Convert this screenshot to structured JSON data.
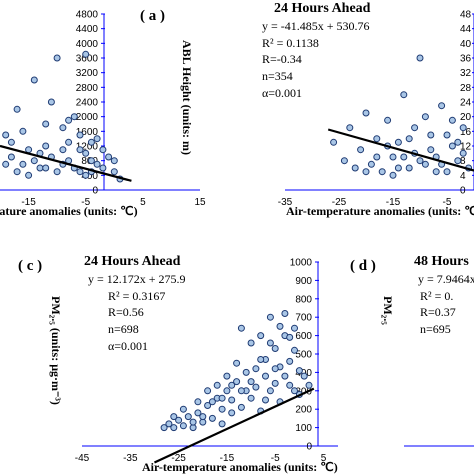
{
  "colors": {
    "axis": "#0000ff",
    "marker_fill": "#a9c6e6",
    "marker_stroke": "#1f3b73",
    "trend": "#000000"
  },
  "chart_data": [
    {
      "type": "scatter",
      "panel": "( a )",
      "xlabel": "rature anomalies (units: ℃)",
      "ylabel": "ABL Height (units: m)",
      "x_ticks": [
        "-15",
        "-5",
        "5",
        "15"
      ],
      "y_ticks": [
        "4800",
        "4400",
        "4000",
        "3600",
        "3200",
        "2800",
        "2400",
        "2000",
        "1600",
        "1200",
        "800",
        "400",
        "0"
      ],
      "xlim": [
        -20,
        15
      ],
      "ylim": [
        0,
        4800
      ],
      "trend": {
        "x0": -20,
        "y0": 1200,
        "x1": 3,
        "y1": 250
      },
      "points": [
        [
          -19,
          1500
        ],
        [
          -18,
          900
        ],
        [
          -17,
          2200
        ],
        [
          -16,
          700
        ],
        [
          -15,
          1100
        ],
        [
          -14,
          3000
        ],
        [
          -13,
          600
        ],
        [
          -12,
          1800
        ],
        [
          -11,
          900
        ],
        [
          -10,
          3600
        ],
        [
          -9,
          700
        ],
        [
          -8,
          1300
        ],
        [
          -7,
          2000
        ],
        [
          -6,
          500
        ],
        [
          -5,
          1000
        ],
        [
          -5,
          3700
        ],
        [
          -4,
          800
        ],
        [
          -3,
          1400
        ],
        [
          -2,
          600
        ],
        [
          -1,
          900
        ],
        [
          0,
          500
        ],
        [
          1,
          300
        ],
        [
          -18,
          1300
        ],
        [
          -16,
          1600
        ],
        [
          -14,
          800
        ],
        [
          -12,
          1200
        ],
        [
          -10,
          500
        ],
        [
          -9,
          1700
        ],
        [
          -8,
          800
        ],
        [
          -7,
          600
        ],
        [
          -6,
          1100
        ],
        [
          -5,
          400
        ],
        [
          -4,
          1300
        ],
        [
          -3,
          700
        ],
        [
          -11,
          2400
        ],
        [
          -15,
          400
        ],
        [
          -13,
          1000
        ],
        [
          -17,
          500
        ],
        [
          -19,
          700
        ],
        [
          -2,
          1100
        ],
        [
          0,
          800
        ],
        [
          -6,
          1500
        ],
        [
          -9,
          1100
        ],
        [
          -12,
          600
        ],
        [
          -8,
          1900
        ],
        [
          -4,
          500
        ]
      ]
    },
    {
      "type": "scatter",
      "title": "24 Hours Ahead",
      "equation": "y = -41.485x + 530.76",
      "r2": "R² = 0.1138",
      "r": "R=-0.34",
      "n": "n=354",
      "alpha": "α=0.001",
      "xlabel": "Air-temperature anomalies (units: ℃)",
      "x_ticks": [
        "-35",
        "-25",
        "-15",
        "-5"
      ],
      "y_ticks": [
        "48",
        "44",
        "40",
        "36",
        "32",
        "28",
        "24",
        "20",
        "16",
        "12",
        "8",
        "4",
        "0"
      ],
      "xlim": [
        -35,
        0
      ],
      "ylim": [
        0,
        4800
      ],
      "trend": {
        "x0": -27,
        "y0": 1650,
        "x1": 0,
        "y1": 530
      },
      "points": [
        [
          -26,
          1300
        ],
        [
          -24,
          800
        ],
        [
          -23,
          1700
        ],
        [
          -22,
          600
        ],
        [
          -21,
          1100
        ],
        [
          -20,
          2100
        ],
        [
          -19,
          700
        ],
        [
          -18,
          1400
        ],
        [
          -17,
          500
        ],
        [
          -16,
          1900
        ],
        [
          -15,
          900
        ],
        [
          -14,
          1300
        ],
        [
          -13,
          2600
        ],
        [
          -12,
          600
        ],
        [
          -11,
          1000
        ],
        [
          -10,
          3600
        ],
        [
          -9,
          700
        ],
        [
          -8,
          1500
        ],
        [
          -7,
          900
        ],
        [
          -6,
          2300
        ],
        [
          -5,
          500
        ],
        [
          -4,
          1200
        ],
        [
          -3,
          800
        ],
        [
          -2,
          1700
        ],
        [
          -1,
          600
        ],
        [
          -20,
          500
        ],
        [
          -18,
          900
        ],
        [
          -16,
          1200
        ],
        [
          -14,
          600
        ],
        [
          -12,
          1400
        ],
        [
          -10,
          800
        ],
        [
          -8,
          1100
        ],
        [
          -6,
          700
        ],
        [
          -4,
          1900
        ],
        [
          -15,
          400
        ],
        [
          -11,
          1700
        ],
        [
          -7,
          500
        ],
        [
          -3,
          1300
        ],
        [
          -9,
          2000
        ],
        [
          -13,
          900
        ],
        [
          -5,
          1500
        ],
        [
          -2,
          1000
        ]
      ]
    },
    {
      "type": "scatter",
      "panel": "( c )",
      "title": "24 Hours Ahead",
      "equation": "y = 12.172x + 275.9",
      "r2": "R² = 0.3167",
      "r": "R=0.56",
      "n": "n=698",
      "alpha": "α=0.001",
      "xlabel": "Air-temperature anomalies (units: ℃)",
      "ylabel": "PM₂.₅ (units: μg·m⁻³)",
      "x_ticks": [
        "-45",
        "-35",
        "-25",
        "-15",
        "-5",
        "5"
      ],
      "y_ticks": [
        "1000",
        "900",
        "800",
        "700",
        "600",
        "500",
        "400",
        "300",
        "200",
        "100",
        "0"
      ],
      "xlim": [
        -45,
        8
      ],
      "ylim": [
        0,
        1000
      ],
      "trend": {
        "x0": -30,
        "y0": -90,
        "x1": 3,
        "y1": 312
      },
      "points": [
        [
          -28,
          100
        ],
        [
          -27,
          120
        ],
        [
          -26,
          100
        ],
        [
          -25,
          140
        ],
        [
          -24,
          110
        ],
        [
          -23,
          160
        ],
        [
          -22,
          100
        ],
        [
          -21,
          180
        ],
        [
          -20,
          130
        ],
        [
          -19,
          220
        ],
        [
          -18,
          150
        ],
        [
          -17,
          260
        ],
        [
          -16,
          120
        ],
        [
          -15,
          300
        ],
        [
          -14,
          180
        ],
        [
          -13,
          350
        ],
        [
          -12,
          210
        ],
        [
          -11,
          400
        ],
        [
          -10,
          260
        ],
        [
          -9,
          420
        ],
        [
          -8,
          190
        ],
        [
          -7,
          470
        ],
        [
          -6,
          300
        ],
        [
          -5,
          530
        ],
        [
          -4,
          240
        ],
        [
          -3,
          600
        ],
        [
          -2,
          330
        ],
        [
          -1,
          520
        ],
        [
          0,
          280
        ],
        [
          1,
          380
        ],
        [
          -12,
          640
        ],
        [
          -8,
          600
        ],
        [
          -10,
          560
        ],
        [
          -6,
          700
        ],
        [
          -4,
          430
        ],
        [
          -2,
          460
        ],
        [
          -14,
          250
        ],
        [
          -16,
          200
        ],
        [
          -18,
          240
        ],
        [
          -20,
          160
        ],
        [
          -11,
          300
        ],
        [
          -9,
          320
        ],
        [
          -7,
          380
        ],
        [
          -5,
          340
        ],
        [
          -3,
          380
        ],
        [
          -1,
          300
        ],
        [
          -13,
          450
        ],
        [
          -15,
          380
        ],
        [
          -17,
          330
        ],
        [
          -19,
          300
        ],
        [
          -21,
          240
        ],
        [
          -24,
          200
        ],
        [
          -26,
          160
        ],
        [
          -22,
          130
        ],
        [
          -6,
          560
        ],
        [
          -4,
          650
        ],
        [
          -2,
          590
        ],
        [
          0,
          410
        ],
        [
          2,
          330
        ],
        [
          -8,
          470
        ],
        [
          -10,
          350
        ],
        [
          -12,
          300
        ],
        [
          -14,
          330
        ],
        [
          -16,
          260
        ],
        [
          -3,
          720
        ],
        [
          -1,
          640
        ],
        [
          -5,
          420
        ],
        [
          -7,
          250
        ]
      ]
    },
    {
      "type": "scatter",
      "panel": "( d )",
      "title": "48 Hours",
      "equation": "y = 7.9464x",
      "r2": "R² = 0.",
      "r": "R=0.37",
      "n": "n=695"
    }
  ]
}
